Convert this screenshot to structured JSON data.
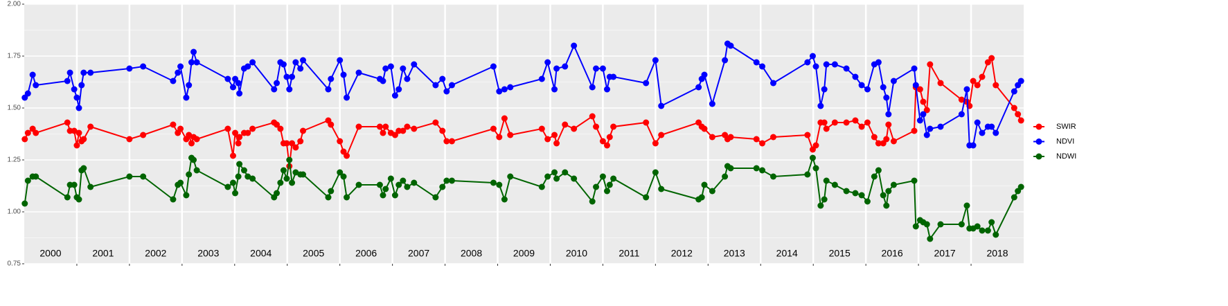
{
  "chart_data": {
    "type": "line",
    "x": [
      2000.01,
      2000.07,
      2000.16,
      2000.22,
      2000.82,
      2000.87,
      2000.95,
      2001.0,
      2001.04,
      2001.09,
      2001.13,
      2001.26,
      2002.0,
      2002.26,
      2002.83,
      2002.92,
      2002.97,
      2003.08,
      2003.13,
      2003.18,
      2003.22,
      2003.28,
      2003.87,
      2003.97,
      2004.01,
      2004.07,
      2004.09,
      2004.18,
      2004.25,
      2004.34,
      2004.75,
      2004.8,
      2004.87,
      2004.93,
      2004.99,
      2005.04,
      2005.09,
      2005.16,
      2005.25,
      2005.3,
      2005.78,
      2005.83,
      2006.0,
      2006.07,
      2006.13,
      2006.36,
      2006.76,
      2006.82,
      2006.87,
      2006.97,
      2007.05,
      2007.12,
      2007.2,
      2007.28,
      2007.41,
      2007.82,
      2007.95,
      2008.03,
      2008.13,
      2008.92,
      2009.03,
      2009.13,
      2009.24,
      2009.84,
      2009.95,
      2010.08,
      2010.12,
      2010.28,
      2010.45,
      2010.8,
      2010.87,
      2011.0,
      2011.08,
      2011.13,
      2011.2,
      2011.82,
      2012.0,
      2012.11,
      2012.82,
      2012.88,
      2012.93,
      2013.08,
      2013.32,
      2013.37,
      2013.43,
      2013.92,
      2014.03,
      2014.24,
      2014.89,
      2014.99,
      2015.05,
      2015.14,
      2015.21,
      2015.25,
      2015.41,
      2015.63,
      2015.8,
      2015.92,
      2016.03,
      2016.16,
      2016.24,
      2016.33,
      2016.39,
      2016.43,
      2016.53,
      2016.92,
      2016.95,
      2017.03,
      2017.09,
      2017.16,
      2017.22,
      2017.42,
      2017.82,
      2017.92,
      2017.97,
      2018.04,
      2018.12,
      2018.21,
      2018.32,
      2018.39,
      2018.47,
      2018.82,
      2018.89,
      2018.95
    ],
    "series": [
      {
        "name": "SWIR",
        "color": "#ff0000",
        "values": [
          1.35,
          1.38,
          1.4,
          1.38,
          1.43,
          1.39,
          1.39,
          1.32,
          1.38,
          1.34,
          1.35,
          1.41,
          1.35,
          1.37,
          1.42,
          1.38,
          1.4,
          1.35,
          1.37,
          1.33,
          1.36,
          1.35,
          1.4,
          1.27,
          1.38,
          1.33,
          1.36,
          1.38,
          1.38,
          1.4,
          1.43,
          1.42,
          1.4,
          1.33,
          1.33,
          1.22,
          1.33,
          1.31,
          1.34,
          1.39,
          1.44,
          1.42,
          1.34,
          1.29,
          1.27,
          1.41,
          1.41,
          1.38,
          1.41,
          1.38,
          1.37,
          1.39,
          1.39,
          1.41,
          1.4,
          1.43,
          1.39,
          1.34,
          1.34,
          1.4,
          1.36,
          1.45,
          1.37,
          1.4,
          1.35,
          1.37,
          1.33,
          1.42,
          1.4,
          1.46,
          1.41,
          1.34,
          1.32,
          1.36,
          1.41,
          1.43,
          1.33,
          1.37,
          1.43,
          1.41,
          1.4,
          1.36,
          1.37,
          1.35,
          1.36,
          1.35,
          1.33,
          1.36,
          1.37,
          1.3,
          1.32,
          1.43,
          1.43,
          1.4,
          1.43,
          1.43,
          1.44,
          1.41,
          1.43,
          1.36,
          1.33,
          1.33,
          1.35,
          1.42,
          1.34,
          1.39,
          1.6,
          1.59,
          1.53,
          1.49,
          1.71,
          1.62,
          1.54,
          1.53,
          1.51,
          1.63,
          1.61,
          1.65,
          1.72,
          1.74,
          1.61,
          1.5,
          1.47,
          1.44
        ]
      },
      {
        "name": "NDVI",
        "color": "#0000ff",
        "values": [
          1.55,
          1.57,
          1.66,
          1.61,
          1.63,
          1.67,
          1.59,
          1.55,
          1.5,
          1.61,
          1.67,
          1.67,
          1.69,
          1.7,
          1.63,
          1.67,
          1.7,
          1.55,
          1.61,
          1.72,
          1.77,
          1.72,
          1.64,
          1.6,
          1.64,
          1.62,
          1.57,
          1.69,
          1.7,
          1.72,
          1.59,
          1.62,
          1.72,
          1.71,
          1.65,
          1.59,
          1.65,
          1.72,
          1.69,
          1.73,
          1.59,
          1.64,
          1.73,
          1.66,
          1.55,
          1.67,
          1.64,
          1.63,
          1.69,
          1.7,
          1.56,
          1.59,
          1.69,
          1.64,
          1.71,
          1.61,
          1.64,
          1.58,
          1.61,
          1.7,
          1.58,
          1.59,
          1.6,
          1.64,
          1.72,
          1.59,
          1.69,
          1.7,
          1.8,
          1.6,
          1.69,
          1.69,
          1.59,
          1.65,
          1.65,
          1.62,
          1.73,
          1.51,
          1.6,
          1.64,
          1.66,
          1.52,
          1.73,
          1.81,
          1.8,
          1.72,
          1.7,
          1.62,
          1.72,
          1.75,
          1.7,
          1.51,
          1.59,
          1.71,
          1.71,
          1.69,
          1.65,
          1.61,
          1.59,
          1.71,
          1.72,
          1.6,
          1.55,
          1.47,
          1.63,
          1.69,
          1.61,
          1.44,
          1.47,
          1.37,
          1.4,
          1.41,
          1.47,
          1.59,
          1.32,
          1.32,
          1.43,
          1.38,
          1.41,
          1.41,
          1.38,
          1.58,
          1.61,
          1.63
        ]
      },
      {
        "name": "NDWI",
        "color": "#006400",
        "values": [
          1.04,
          1.15,
          1.17,
          1.17,
          1.07,
          1.13,
          1.13,
          1.07,
          1.06,
          1.2,
          1.21,
          1.12,
          1.17,
          1.17,
          1.06,
          1.13,
          1.14,
          1.08,
          1.18,
          1.26,
          1.25,
          1.2,
          1.12,
          1.14,
          1.09,
          1.17,
          1.23,
          1.2,
          1.17,
          1.16,
          1.07,
          1.09,
          1.14,
          1.2,
          1.16,
          1.25,
          1.14,
          1.19,
          1.18,
          1.18,
          1.07,
          1.1,
          1.19,
          1.17,
          1.07,
          1.13,
          1.13,
          1.08,
          1.11,
          1.16,
          1.08,
          1.13,
          1.15,
          1.12,
          1.14,
          1.07,
          1.12,
          1.15,
          1.15,
          1.14,
          1.13,
          1.06,
          1.17,
          1.12,
          1.17,
          1.19,
          1.16,
          1.19,
          1.16,
          1.05,
          1.12,
          1.17,
          1.1,
          1.13,
          1.16,
          1.07,
          1.19,
          1.11,
          1.06,
          1.07,
          1.13,
          1.1,
          1.17,
          1.22,
          1.21,
          1.21,
          1.2,
          1.17,
          1.18,
          1.26,
          1.21,
          1.03,
          1.06,
          1.15,
          1.13,
          1.1,
          1.09,
          1.08,
          1.05,
          1.17,
          1.2,
          1.08,
          1.03,
          1.1,
          1.13,
          1.15,
          0.93,
          0.96,
          0.95,
          0.94,
          0.87,
          0.94,
          0.94,
          1.03,
          0.92,
          0.92,
          0.93,
          0.91,
          0.91,
          0.95,
          0.89,
          1.07,
          1.1,
          1.12
        ]
      }
    ],
    "xlim": [
      2000,
      2019
    ],
    "xticks": [
      {
        "value": 2000.5,
        "label": "2000"
      },
      {
        "value": 2001.5,
        "label": "2001"
      },
      {
        "value": 2002.5,
        "label": "2002"
      },
      {
        "value": 2003.5,
        "label": "2003"
      },
      {
        "value": 2004.5,
        "label": "2004"
      },
      {
        "value": 2005.5,
        "label": "2005"
      },
      {
        "value": 2006.5,
        "label": "2006"
      },
      {
        "value": 2007.5,
        "label": "2007"
      },
      {
        "value": 2008.5,
        "label": "2008"
      },
      {
        "value": 2009.5,
        "label": "2009"
      },
      {
        "value": 2010.5,
        "label": "2010"
      },
      {
        "value": 2011.5,
        "label": "2011"
      },
      {
        "value": 2012.5,
        "label": "2012"
      },
      {
        "value": 2013.5,
        "label": "2013"
      },
      {
        "value": 2014.5,
        "label": "2014"
      },
      {
        "value": 2015.5,
        "label": "2015"
      },
      {
        "value": 2016.5,
        "label": "2016"
      },
      {
        "value": 2017.5,
        "label": "2017"
      },
      {
        "value": 2018.5,
        "label": "2018"
      }
    ],
    "xgrid": [
      2001,
      2002,
      2003,
      2004,
      2005,
      2006,
      2007,
      2008,
      2009,
      2010,
      2011,
      2012,
      2013,
      2014,
      2015,
      2016,
      2017,
      2018
    ],
    "ylim": [
      0.75,
      2.0
    ],
    "yticks": [
      0.75,
      {
        "value": 1,
        "label": "1.00"
      },
      1.25,
      {
        "value": 1.5,
        "label": "1.50"
      },
      1.75,
      {
        "value": 2,
        "label": "2.00"
      }
    ],
    "grid": true,
    "minor_grid": true,
    "legend": "right"
  }
}
